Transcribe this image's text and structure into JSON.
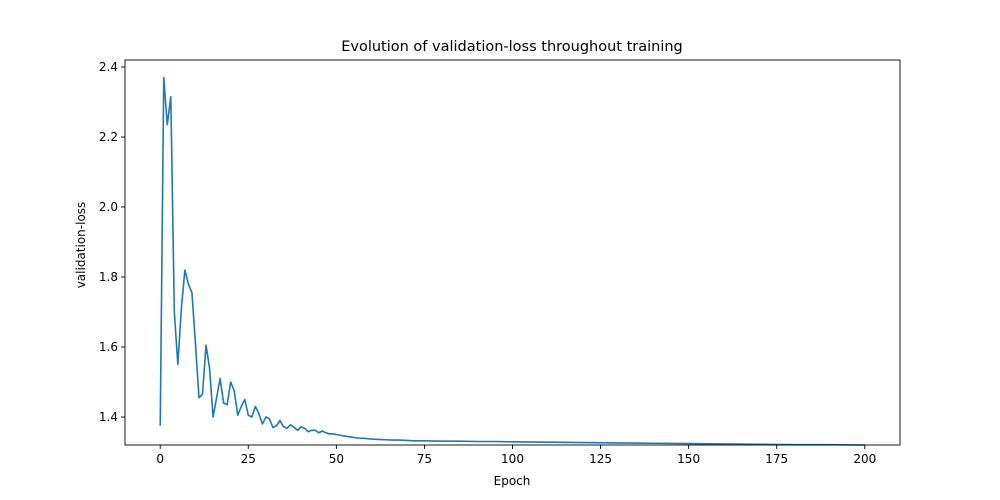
{
  "chart_data": {
    "type": "line",
    "title": "Evolution of validation-loss throughout training",
    "xlabel": "Epoch",
    "ylabel": "validation-loss",
    "xlim": [
      -10,
      210
    ],
    "ylim": [
      1.32,
      2.42
    ],
    "xticks": [
      0,
      25,
      50,
      75,
      100,
      125,
      150,
      175,
      200
    ],
    "yticks": [
      1.4,
      1.6,
      1.8,
      2.0,
      2.2,
      2.4
    ],
    "grid": false,
    "series": [
      {
        "color": "#1f77b4",
        "x": [
          0,
          1,
          2,
          3,
          4,
          5,
          6,
          7,
          8,
          9,
          10,
          11,
          12,
          13,
          14,
          15,
          16,
          17,
          18,
          19,
          20,
          21,
          22,
          23,
          24,
          25,
          26,
          27,
          28,
          29,
          30,
          31,
          32,
          33,
          34,
          35,
          36,
          37,
          38,
          39,
          40,
          41,
          42,
          43,
          44,
          45,
          46,
          47,
          48,
          49,
          50,
          52,
          54,
          56,
          58,
          60,
          62,
          64,
          66,
          68,
          70,
          72,
          75,
          80,
          85,
          90,
          95,
          100,
          110,
          120,
          130,
          140,
          150,
          160,
          170,
          180,
          190,
          200
        ],
        "y": [
          1.375,
          2.37,
          2.235,
          2.315,
          1.7,
          1.55,
          1.71,
          1.82,
          1.78,
          1.755,
          1.61,
          1.455,
          1.465,
          1.605,
          1.54,
          1.4,
          1.455,
          1.51,
          1.44,
          1.435,
          1.5,
          1.475,
          1.405,
          1.43,
          1.45,
          1.405,
          1.4,
          1.43,
          1.41,
          1.38,
          1.4,
          1.395,
          1.37,
          1.375,
          1.39,
          1.372,
          1.368,
          1.378,
          1.37,
          1.362,
          1.372,
          1.368,
          1.358,
          1.362,
          1.362,
          1.355,
          1.36,
          1.355,
          1.352,
          1.352,
          1.35,
          1.346,
          1.343,
          1.34,
          1.339,
          1.337,
          1.336,
          1.335,
          1.334,
          1.334,
          1.333,
          1.332,
          1.332,
          1.331,
          1.331,
          1.33,
          1.33,
          1.329,
          1.328,
          1.327,
          1.326,
          1.325,
          1.324,
          1.323,
          1.322,
          1.321,
          1.321,
          1.32
        ]
      }
    ]
  }
}
